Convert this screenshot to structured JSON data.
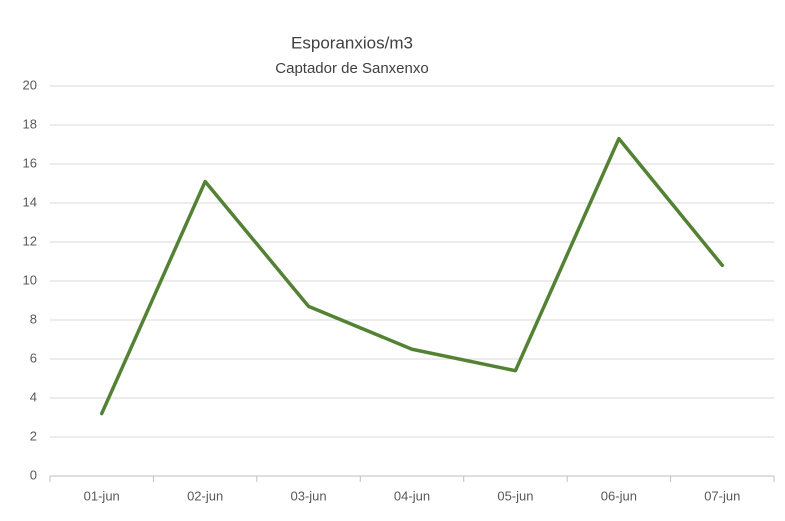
{
  "chart_data": {
    "type": "line",
    "title": "Esporanxios/m3",
    "subtitle": "Captador de Sanxenxo",
    "categories": [
      "01-jun",
      "02-jun",
      "03-jun",
      "04-jun",
      "05-jun",
      "06-jun",
      "07-jun"
    ],
    "series": [
      {
        "color": "#548235",
        "values": [
          3.2,
          15.1,
          8.7,
          6.5,
          5.4,
          17.3,
          10.8
        ]
      }
    ],
    "ylim": [
      0,
      20
    ],
    "yticks": [
      0,
      2,
      4,
      6,
      8,
      10,
      12,
      14,
      16,
      18,
      20
    ],
    "grid": true
  }
}
